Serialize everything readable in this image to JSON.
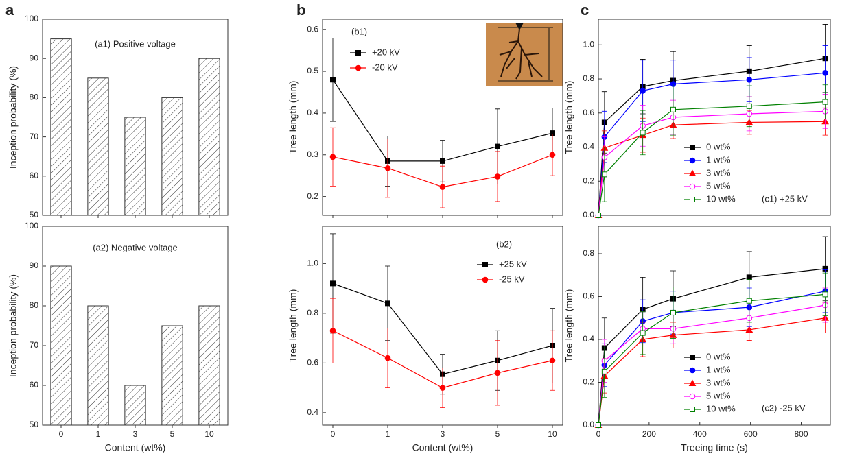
{
  "chart_data": [
    {
      "type": "bar",
      "panel_label": "a",
      "annotation": "(a1)  Positive  voltage",
      "ylabel": "Inception probability (%)",
      "values": [
        95,
        85,
        75,
        80,
        90
      ],
      "color": "#333333",
      "ylim": [
        50,
        100
      ],
      "yticks": [
        50,
        60,
        70,
        80,
        90,
        100
      ]
    },
    {
      "type": "bar",
      "annotation": "(a2)    Negative voltage",
      "ylabel": "Inception probability (%)",
      "xlabel": "Content  (wt%)",
      "categories": [
        "0",
        "1",
        "3",
        "5",
        "10"
      ],
      "values": [
        90,
        80,
        60,
        75,
        80
      ],
      "color": "#333333",
      "ylim": [
        50,
        100
      ],
      "yticks": [
        50,
        60,
        70,
        80,
        90,
        100
      ]
    },
    {
      "type": "line",
      "panel_label": "b",
      "annotation": "(b1)",
      "ylabel": "Tree length (mm)",
      "legend": "upper left",
      "ylim": [
        0.155,
        0.625
      ],
      "yticks": [
        0.2,
        0.3,
        0.4,
        0.5,
        0.6
      ],
      "series": [
        {
          "name": "+20 kV",
          "color": "#000000",
          "marker": "square",
          "values": [
            0.48,
            0.285,
            0.285,
            0.32,
            0.352
          ],
          "errors": [
            0.1,
            0.06,
            0.05,
            0.09,
            0.06
          ]
        },
        {
          "name": "-20 kV",
          "color": "#ff0000",
          "marker": "circle",
          "values": [
            0.295,
            0.268,
            0.223,
            0.248,
            0.3
          ],
          "errors": [
            0.07,
            0.07,
            0.05,
            0.06,
            0.05
          ]
        }
      ]
    },
    {
      "type": "line",
      "annotation": "(b2)",
      "ylabel": "Tree length (mm)",
      "xlabel": "Content  (wt%)",
      "legend": "upper right",
      "categories": [
        "0",
        "1",
        "3",
        "5",
        "10"
      ],
      "ylim": [
        0.35,
        1.15
      ],
      "yticks": [
        0.4,
        0.6,
        0.8,
        {
          "value": 1,
          "label": "1.0"
        }
      ],
      "series": [
        {
          "name": "+25 kV",
          "color": "#000000",
          "marker": "square",
          "values": [
            0.92,
            0.84,
            0.555,
            0.61,
            0.67
          ],
          "errors": [
            0.2,
            0.15,
            0.08,
            0.12,
            0.15
          ]
        },
        {
          "name": "-25 kV",
          "color": "#ff0000",
          "marker": "circle",
          "values": [
            0.73,
            0.62,
            0.5,
            0.56,
            0.61
          ],
          "errors": [
            0.13,
            0.12,
            0.08,
            0.13,
            0.12
          ]
        }
      ]
    },
    {
      "type": "line",
      "panel_label": "c",
      "annotation": "(c1) +25 kV",
      "ylabel": "Tree length (mm)",
      "legend": "lower right",
      "x": [
        0,
        24,
        175,
        295,
        595,
        895
      ],
      "xlim": [
        0,
        915
      ],
      "ylim": [
        0,
        1.15
      ],
      "yticks": [
        {
          "value": 0,
          "label": "0.0"
        },
        0.2,
        0.4,
        0.6,
        0.8,
        {
          "value": 1,
          "label": "1.0"
        }
      ],
      "series": [
        {
          "name": "0 wt%",
          "color": "#000000",
          "marker": "square",
          "values": [
            0,
            0.545,
            0.755,
            0.79,
            0.845,
            0.92
          ],
          "errors": [
            0,
            0.18,
            0.16,
            0.17,
            0.15,
            0.2
          ]
        },
        {
          "name": "1 wt%",
          "color": "#0000ff",
          "marker": "circle",
          "values": [
            0,
            0.46,
            0.73,
            0.77,
            0.795,
            0.835
          ],
          "errors": [
            0,
            0.15,
            0.18,
            0.14,
            0.13,
            0.16
          ]
        },
        {
          "name": "3 wt%",
          "color": "#ff0000",
          "marker": "triangle",
          "values": [
            0,
            0.395,
            0.47,
            0.53,
            0.545,
            0.55
          ],
          "errors": [
            0,
            0.1,
            0.1,
            0.08,
            0.07,
            0.08
          ]
        },
        {
          "name": "5 wt%",
          "color": "#ff00ff",
          "marker": "circle-open",
          "values": [
            0,
            0.34,
            0.525,
            0.575,
            0.595,
            0.61
          ],
          "errors": [
            0,
            0.12,
            0.12,
            0.1,
            0.1,
            0.1
          ]
        },
        {
          "name": "10 wt%",
          "color": "#008000",
          "marker": "square-open",
          "values": [
            0,
            0.24,
            0.485,
            0.62,
            0.64,
            0.665
          ],
          "errors": [
            0,
            0.16,
            0.13,
            0.15,
            0.12,
            0.1
          ]
        }
      ]
    },
    {
      "type": "line",
      "annotation": "(c2) -25 kV",
      "ylabel": "Tree length (mm)",
      "xlabel": "Treeing time (s)",
      "legend": "lower right",
      "x": [
        0,
        24,
        175,
        295,
        595,
        895
      ],
      "xlim": [
        0,
        915
      ],
      "xticks": [
        0,
        200,
        400,
        600,
        800
      ],
      "ylim": [
        0,
        0.928
      ],
      "yticks": [
        {
          "value": 0,
          "label": "0.0"
        },
        0.2,
        0.4,
        0.6,
        0.8
      ],
      "series": [
        {
          "name": "0 wt%",
          "color": "#000000",
          "marker": "square",
          "values": [
            0,
            0.36,
            0.54,
            0.59,
            0.69,
            0.73
          ],
          "errors": [
            0,
            0.14,
            0.15,
            0.13,
            0.12,
            0.15
          ]
        },
        {
          "name": "1 wt%",
          "color": "#0000ff",
          "marker": "circle",
          "values": [
            0,
            0.28,
            0.485,
            0.525,
            0.55,
            0.625
          ],
          "errors": [
            0,
            0.1,
            0.1,
            0.1,
            0.09,
            0.1
          ]
        },
        {
          "name": "3 wt%",
          "color": "#ff0000",
          "marker": "triangle",
          "values": [
            0,
            0.23,
            0.4,
            0.42,
            0.445,
            0.5
          ],
          "errors": [
            0,
            0.08,
            0.08,
            0.06,
            0.05,
            0.07
          ]
        },
        {
          "name": "5 wt%",
          "color": "#ff00ff",
          "marker": "circle-open",
          "values": [
            0,
            0.3,
            0.45,
            0.45,
            0.5,
            0.56
          ],
          "errors": [
            0,
            0.1,
            0.08,
            0.07,
            0.07,
            0.08
          ]
        },
        {
          "name": "10 wt%",
          "color": "#008000",
          "marker": "square-open",
          "values": [
            0,
            0.25,
            0.43,
            0.525,
            0.58,
            0.61
          ],
          "errors": [
            0,
            0.12,
            0.1,
            0.12,
            0.1,
            0.1
          ]
        }
      ]
    }
  ]
}
